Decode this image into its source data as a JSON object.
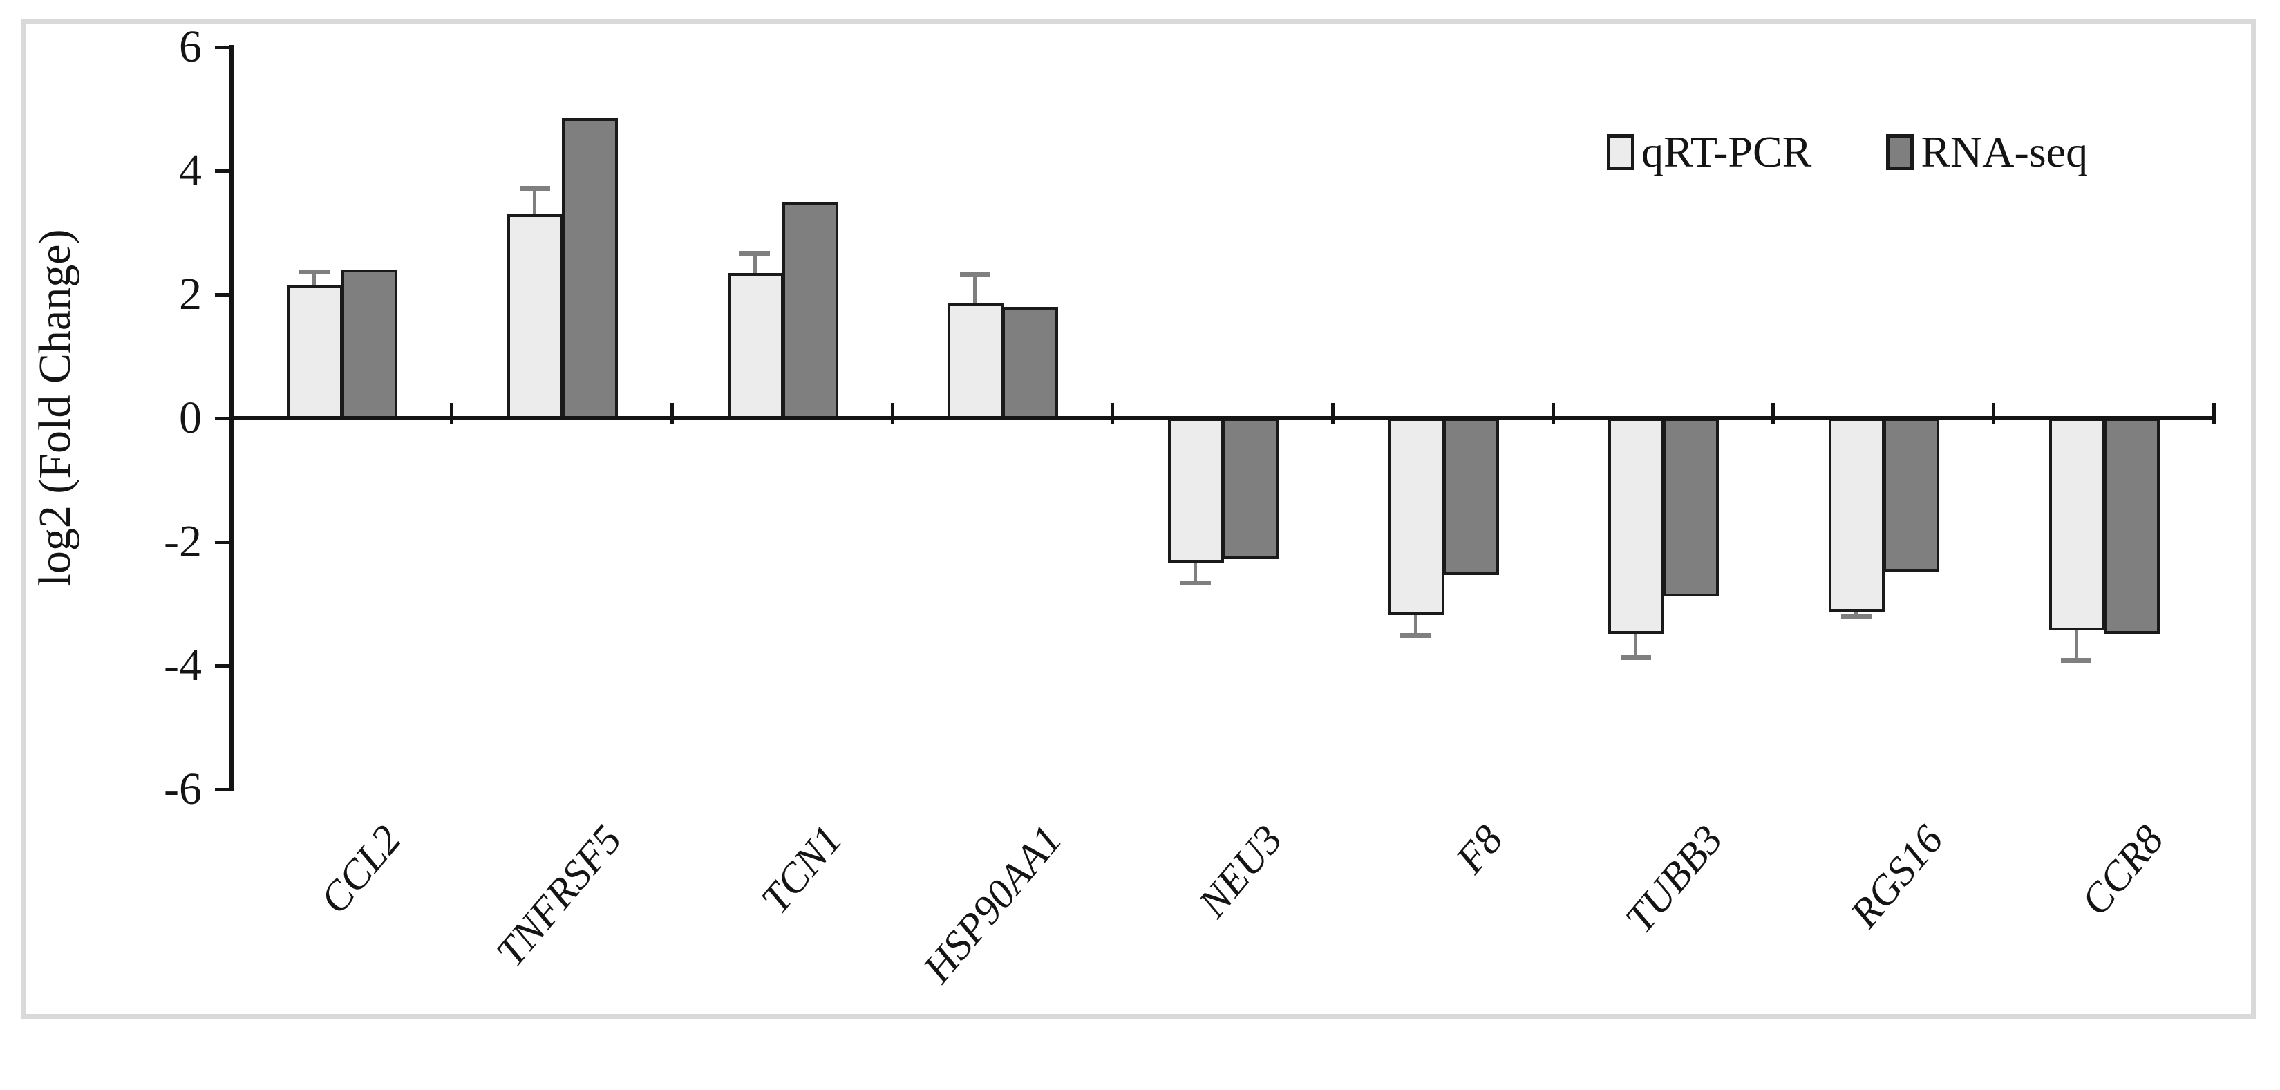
{
  "figure": {
    "border_color": "#d9d9d9",
    "background_color": "#ffffff",
    "text_color": "#141414"
  },
  "chart_data": {
    "type": "bar",
    "title": "",
    "xlabel": "",
    "ylabel": "log2 (Fold Change)",
    "ylim": [
      -6,
      6
    ],
    "yticks": [
      6,
      4,
      2,
      0,
      -2,
      -4,
      -6
    ],
    "grid": false,
    "legend_position": "top-right-inside",
    "categories": [
      "CCL2",
      "TNFRSF5",
      "TCN1",
      "HSP90AA1",
      "NEU3",
      "F8",
      "TUBB3",
      "RGS16",
      "CCR8"
    ],
    "series": [
      {
        "name": "qRT-PCR",
        "color": "#ececec",
        "border_color": "#1a1a1a",
        "values": [
          2.15,
          3.3,
          2.35,
          1.85,
          -2.3,
          -3.15,
          -3.45,
          -3.1,
          -3.4
        ],
        "errors": [
          0.2,
          0.4,
          0.3,
          0.45,
          0.35,
          0.35,
          0.4,
          0.1,
          0.5
        ]
      },
      {
        "name": "RNA-seq",
        "color": "#7f7f7f",
        "border_color": "#1a1a1a",
        "values": [
          2.4,
          4.85,
          3.5,
          1.8,
          -2.25,
          -2.5,
          -2.85,
          -2.45,
          -3.45
        ]
      }
    ],
    "error_bar_color": "#7f7f7f",
    "axis_color": "#141414"
  }
}
